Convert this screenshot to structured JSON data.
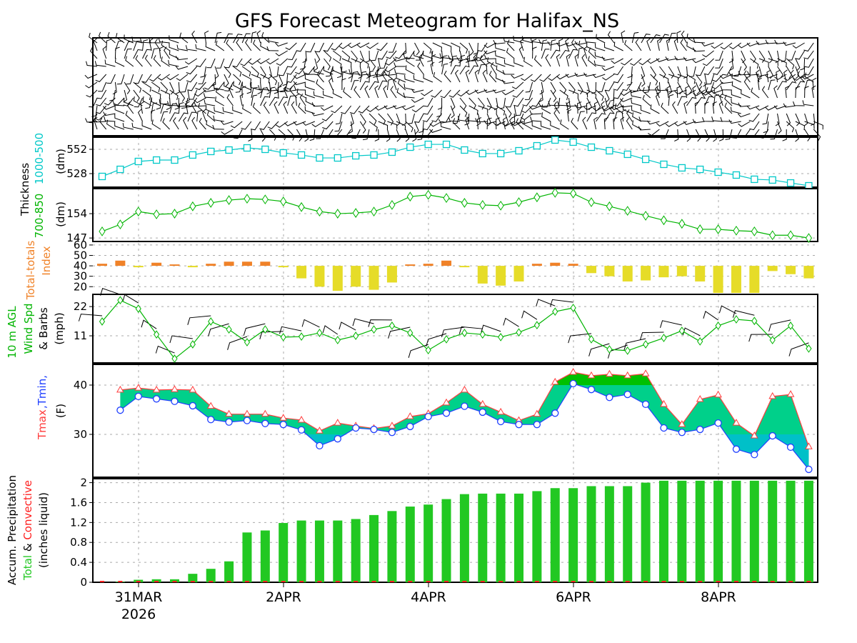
{
  "chart_data": {
    "type": "line",
    "title": "GFS Forecast Meteogram for Halifax_NS",
    "date_labels": [
      "31MAR",
      "2APR",
      "4APR",
      "6APR",
      "8APR"
    ],
    "year_label": "2026",
    "time_step_hours": 6,
    "colors": {
      "thick1000_500": "#00c8c8",
      "thick700_850": "#00b400",
      "tt_above": "#f08228",
      "tt_below": "#e6dc28",
      "wind": "#00b400",
      "tmax": "#ff3c3c",
      "tmin": "#2040ff",
      "temp_fill": "#00d08a",
      "temp_fill_warm": "#00c000",
      "temp_fill_cold": "#00c0c8",
      "precip_total": "#22c822",
      "precip_conv": "#ff2020"
    },
    "panels": {
      "thickness_1000_500": {
        "labels": {
          "name": "Thickness",
          "series": "1000-500",
          "units": "(dm)"
        },
        "yticks": [
          "528",
          "552"
        ],
        "ytick_values": [
          528,
          552
        ],
        "ylim": [
          514.6,
          564
        ],
        "values": [
          525.2,
          532.2,
          540,
          541.4,
          541.4,
          546.4,
          549.9,
          551.3,
          553.4,
          552,
          548.5,
          546.4,
          543.5,
          543.5,
          545.6,
          546.4,
          549.2,
          554.1,
          556.9,
          556.9,
          551.3,
          547.8,
          547.8,
          550.6,
          555.5,
          561.2,
          559.1,
          554.1,
          550.6,
          547.1,
          542.1,
          537.2,
          533.7,
          532.2,
          529.4,
          526.6,
          522.4,
          521.7,
          518.8,
          516
        ]
      },
      "thickness_700_850": {
        "labels": {
          "series": "700-850",
          "units": "(dm)"
        },
        "yticks": [
          "147",
          "154"
        ],
        "ytick_values": [
          147,
          154
        ],
        "ylim": [
          146,
          161.2
        ],
        "values": [
          148.9,
          150.9,
          154.6,
          153.8,
          154,
          156.1,
          157.1,
          157.9,
          158.3,
          158.1,
          157.5,
          155.9,
          154.6,
          154,
          154.2,
          154.6,
          156.5,
          158.9,
          159.4,
          158.5,
          157.1,
          156.5,
          156.3,
          157.3,
          158.7,
          160,
          159.8,
          157.3,
          156.1,
          154.8,
          153.4,
          152.1,
          151.1,
          149.5,
          149.5,
          149.1,
          148.9,
          147.8,
          147.8,
          147
        ]
      },
      "total_totals": {
        "labels": {
          "name": "Total-totals",
          "sub": "Index"
        },
        "yticks": [
          "20",
          "30",
          "40",
          "50",
          "60"
        ],
        "ytick_values": [
          20,
          30,
          40,
          50,
          60
        ],
        "ylim": [
          14,
          62
        ],
        "baseline": 40,
        "values": [
          42,
          45,
          39.5,
          43,
          41,
          39.5,
          42,
          44,
          44,
          44,
          39,
          28,
          20,
          16,
          20,
          17,
          24,
          41,
          42,
          45,
          39.5,
          23,
          21,
          25,
          42,
          43,
          42,
          33,
          30,
          25,
          26,
          29,
          30,
          25,
          14,
          14,
          14,
          35,
          32,
          28
        ]
      },
      "wind_10m": {
        "labels": {
          "l1": "10 m AGL",
          "l2": "Wind Spd",
          "l3": "& Barbs",
          "units": "(mph)"
        },
        "yticks": [
          "11",
          "22"
        ],
        "ytick_values": [
          11,
          22
        ],
        "ylim": [
          0.8,
          26.6
        ],
        "values": [
          16.4,
          24.4,
          21.2,
          11.5,
          2.4,
          7.8,
          16.4,
          13.4,
          8.6,
          13.4,
          10.5,
          10.7,
          12.1,
          9.4,
          11,
          13.4,
          14.8,
          12.1,
          5.6,
          9.7,
          12.1,
          11.5,
          10.5,
          12.3,
          15,
          20.1,
          21.5,
          9.7,
          5.9,
          5.4,
          7.8,
          10.2,
          12.9,
          8.9,
          14.8,
          17.2,
          16.6,
          9.4,
          14.8,
          6.2
        ]
      },
      "temperature": {
        "labels": {
          "tmax": "Tmax",
          "tmin": ",Tmin,",
          "units": "(F)"
        },
        "yticks": [
          "30",
          "40"
        ],
        "ytick_values": [
          30,
          40
        ],
        "ylim": [
          21.3,
          44.2
        ],
        "start_index": 1,
        "tmax": [
          39.0,
          39.4,
          39.0,
          39.1,
          39.0,
          35.7,
          34.1,
          34.1,
          34.1,
          33.3,
          32.9,
          30.7,
          32.3,
          31.7,
          31.2,
          31.7,
          33.6,
          34.2,
          36.4,
          39.0,
          36.1,
          34.5,
          32.8,
          34.1,
          40.6,
          42.6,
          41.9,
          42.2,
          41.9,
          42.3,
          36.1,
          32.0,
          37.1,
          38.0,
          32.3,
          29.7,
          37.7,
          38.1,
          27.5
        ],
        "tmin": [
          34.9,
          37.7,
          37.2,
          36.7,
          35.8,
          33.0,
          32.5,
          32.8,
          32.2,
          32.0,
          30.9,
          27.7,
          29.1,
          31.3,
          31.0,
          30.4,
          31.6,
          33.6,
          34.3,
          35.7,
          34.5,
          32.6,
          32.0,
          32.0,
          34.3,
          40.3,
          39.1,
          37.5,
          38.1,
          36.1,
          31.3,
          30.4,
          31.0,
          32.3,
          27.0,
          25.9,
          29.7,
          27.4,
          22.9
        ]
      },
      "precipitation": {
        "labels": {
          "name": "Accum. Precipitation",
          "total": "Total",
          "amp": "&",
          "conv": "Convective",
          "units": "(inches liquid)"
        },
        "yticks": [
          "0",
          "0.4",
          "0.8",
          "1.2",
          "1.6",
          "2"
        ],
        "ytick_values": [
          0,
          0.4,
          0.8,
          1.2,
          1.6,
          2
        ],
        "ylim": [
          0,
          2.08
        ],
        "total": [
          0,
          0.01,
          0.05,
          0.06,
          0.06,
          0.17,
          0.27,
          0.42,
          1.0,
          1.04,
          1.19,
          1.24,
          1.24,
          1.24,
          1.27,
          1.35,
          1.43,
          1.52,
          1.56,
          1.67,
          1.77,
          1.78,
          1.78,
          1.78,
          1.83,
          1.89,
          1.89,
          1.93,
          1.93,
          1.93,
          2.0,
          2.04,
          2.04,
          2.04,
          2.04,
          2.04,
          2.04,
          2.04,
          2.04,
          2.04
        ],
        "convective": [
          0,
          0,
          0,
          0,
          0,
          0,
          0,
          0,
          0,
          0,
          0,
          0,
          0,
          0,
          0,
          0,
          0,
          0,
          0,
          0,
          0,
          0,
          0,
          0,
          0,
          0,
          0,
          0,
          0,
          0,
          0,
          0,
          0,
          0,
          0,
          0,
          0,
          0,
          0,
          0
        ]
      }
    }
  }
}
